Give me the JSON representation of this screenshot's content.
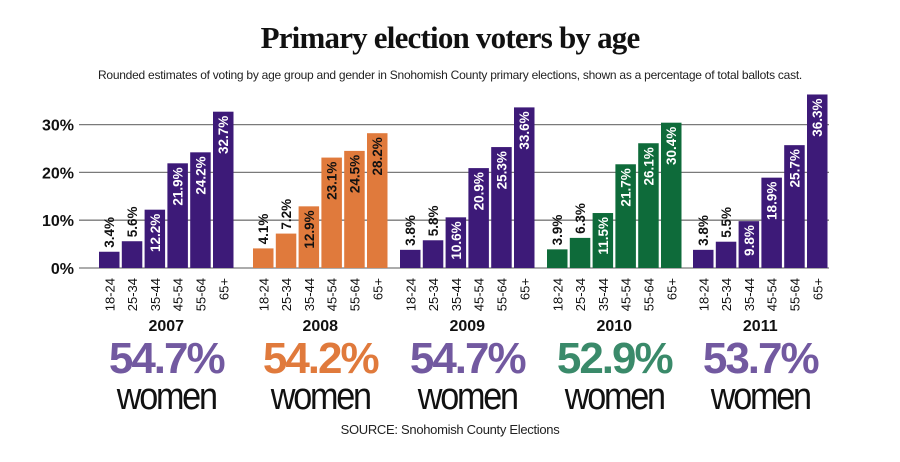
{
  "chart_data": {
    "type": "bar",
    "title": "Primary election voters by age",
    "subtitle": "Rounded estimates of voting by age group and gender in Snohomish County primary elections, shown as a percentage of total ballots cast.",
    "xlabel": "",
    "ylabel": "",
    "ylim": [
      0,
      37
    ],
    "yticks": [
      0,
      10,
      20,
      30
    ],
    "ytick_labels": [
      "0%",
      "10%",
      "20%",
      "30%"
    ],
    "grid": true,
    "categories": [
      "18-24",
      "25-34",
      "35-44",
      "45-54",
      "55-64",
      "65+"
    ],
    "groups": [
      {
        "year": "2007",
        "values": [
          3.4,
          5.6,
          12.2,
          21.9,
          24.2,
          32.7
        ],
        "labels": [
          "3.4%",
          "5.6%",
          "12.2%",
          "21.9%",
          "24.2%",
          "32.7%"
        ],
        "women_pct": "54.7%",
        "bar_color": "#3d1a78",
        "text_color": "#7259a0",
        "label_text_color": "#ffffff"
      },
      {
        "year": "2008",
        "values": [
          4.1,
          7.2,
          12.9,
          23.1,
          24.5,
          28.2
        ],
        "labels": [
          "4.1%",
          "7.2%",
          "12.9%",
          "23.1%",
          "24.5%",
          "28.2%"
        ],
        "women_pct": "54.2%",
        "bar_color": "#e07a3c",
        "text_color": "#e07a3c",
        "label_text_color": "#111111"
      },
      {
        "year": "2009",
        "values": [
          3.8,
          5.8,
          10.6,
          20.9,
          25.3,
          33.6
        ],
        "labels": [
          "3.8%",
          "5.8%",
          "10.6%",
          "20.9%",
          "25.3%",
          "33.6%"
        ],
        "women_pct": "54.7%",
        "bar_color": "#3d1a78",
        "text_color": "#7259a0",
        "label_text_color": "#ffffff"
      },
      {
        "year": "2010",
        "values": [
          3.9,
          6.3,
          11.5,
          21.7,
          26.1,
          30.4
        ],
        "labels": [
          "3.9%",
          "6.3%",
          "11.5%",
          "21.7%",
          "26.1%",
          "30.4%"
        ],
        "women_pct": "52.9%",
        "bar_color": "#0e6b3a",
        "text_color": "#3a8a6a",
        "label_text_color": "#ffffff"
      },
      {
        "year": "2011",
        "values": [
          3.8,
          5.5,
          9.8,
          18.9,
          25.7,
          36.3
        ],
        "labels": [
          "3.8%",
          "5.5%",
          "9.8%",
          "18.9%",
          "25.7%",
          "36.3%"
        ],
        "women_pct": "53.7%",
        "bar_color": "#3d1a78",
        "text_color": "#7259a0",
        "label_text_color": "#ffffff"
      }
    ],
    "women_word": "women",
    "source": "SOURCE: Snohomish County Elections"
  }
}
